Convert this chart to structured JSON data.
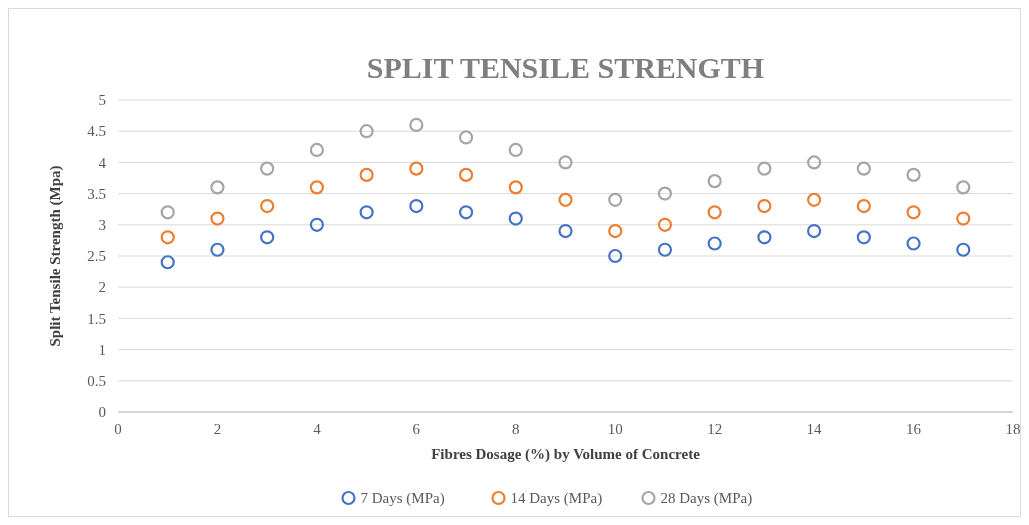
{
  "chart_data": {
    "type": "scatter",
    "title": "SPLIT TENSILE STRENGTH",
    "xlabel": "Fibres Dosage (%) by Volume of Concrete",
    "ylabel": "Split Tensile Strength (Mpa)",
    "x": [
      1,
      2,
      3,
      4,
      5,
      6,
      7,
      8,
      9,
      10,
      11,
      12,
      13,
      14,
      15,
      16,
      17
    ],
    "series": [
      {
        "name": "7 Days (MPa)",
        "color": "#4472c4",
        "values": [
          2.4,
          2.6,
          2.8,
          3.0,
          3.2,
          3.3,
          3.2,
          3.1,
          2.9,
          2.5,
          2.6,
          2.7,
          2.8,
          2.9,
          2.8,
          2.7,
          2.6
        ]
      },
      {
        "name": "14 Days (MPa)",
        "color": "#ed7d31",
        "values": [
          2.8,
          3.1,
          3.3,
          3.6,
          3.8,
          3.9,
          3.8,
          3.6,
          3.4,
          2.9,
          3.0,
          3.2,
          3.3,
          3.4,
          3.3,
          3.2,
          3.1
        ]
      },
      {
        "name": "28 Days (MPa)",
        "color": "#a5a5a5",
        "values": [
          3.2,
          3.6,
          3.9,
          4.2,
          4.5,
          4.6,
          4.4,
          4.2,
          4.0,
          3.4,
          3.5,
          3.7,
          3.9,
          4.0,
          3.9,
          3.8,
          3.6
        ]
      }
    ],
    "xlim": [
      0,
      18
    ],
    "xticks": [
      0,
      2,
      4,
      6,
      8,
      10,
      12,
      14,
      16,
      18
    ],
    "ylim": [
      0,
      5
    ],
    "yticks": [
      0,
      0.5,
      1,
      1.5,
      2,
      2.5,
      3,
      3.5,
      4,
      4.5,
      5
    ],
    "grid": "y",
    "legend": "bottom",
    "marker": "circle"
  }
}
